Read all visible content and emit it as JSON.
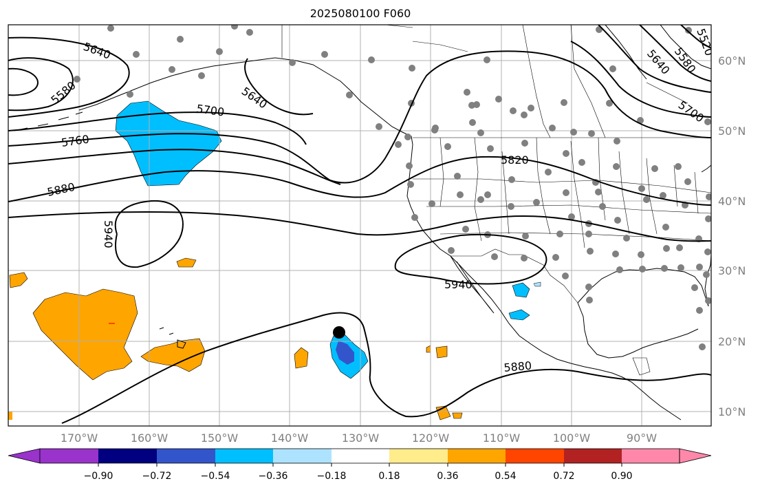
{
  "title": "2025080100 F060",
  "map": {
    "lon_labels": [
      "170°W",
      "160°W",
      "150°W",
      "140°W",
      "130°W",
      "120°W",
      "110°W",
      "100°W",
      "90°W"
    ],
    "lat_labels": [
      "60°N",
      "50°N",
      "40°N",
      "30°N",
      "20°N",
      "10°N"
    ],
    "contour_labels": {
      "c5580a": "5580",
      "c5640a": "5640",
      "c5640b": "5640",
      "c5700a": "5700",
      "c5760": "5760",
      "c5880a": "5880",
      "c5940a": "5940",
      "c5820": "5820",
      "c5940b": "5940",
      "c5880b": "5880",
      "c5640c": "5640",
      "c5580b": "5580",
      "c5520": "5520",
      "c5700b": "5700"
    },
    "marker": "storm-center"
  },
  "colorbar": {
    "ticks": [
      "−0.90",
      "−0.72",
      "−0.54",
      "−0.36",
      "−0.18",
      "0.18",
      "0.36",
      "0.54",
      "0.72",
      "0.90"
    ],
    "colors": [
      "#9933cc",
      "#000080",
      "#3355cc",
      "#00bfff",
      "#aee3ff",
      "#ffffff",
      "#ffec8b",
      "#ffa500",
      "#ff4500",
      "#b22222",
      "#ff88aa"
    ]
  }
}
